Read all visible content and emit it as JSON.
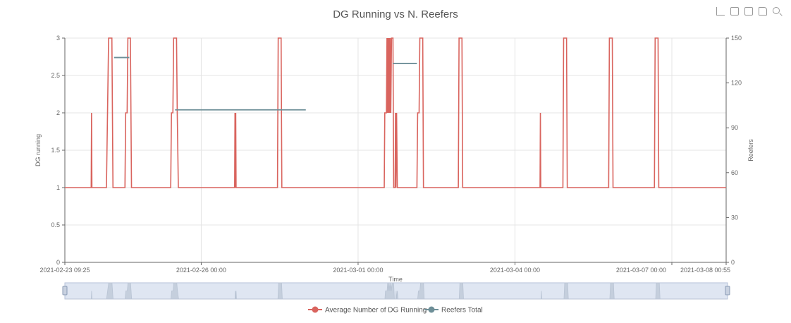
{
  "chart_data": {
    "type": "line",
    "title": "DG Running vs N. Reefers",
    "xlabel": "Time",
    "ylabel_left": "DG running",
    "ylabel_right": "Reefers",
    "x_range": [
      "2021-02-23 09:25",
      "2021-03-08 00:55"
    ],
    "x_tick_labels": [
      "2021-02-23 09:25",
      "2021-02-26 00:00",
      "2021-03-01 00:00",
      "2021-03-04 00:00",
      "2021-03-07 00:00",
      "2021-03-08 00:55"
    ],
    "y_left_ticks": [
      "0",
      "0.5",
      "1",
      "1.5",
      "2",
      "2.5",
      "3"
    ],
    "y_left_range": [
      0,
      3
    ],
    "y_right_ticks": [
      "0",
      "30",
      "60",
      "90",
      "120",
      "150"
    ],
    "y_right_range": [
      0,
      150
    ],
    "grid": true,
    "legend_position": "bottom-center",
    "series": [
      {
        "name": "Average Number of DG Running",
        "axis": "left",
        "color": "#d9645e",
        "points": [
          [
            "2021-02-23 09:25",
            1
          ],
          [
            "2021-02-23 21:30",
            1
          ],
          [
            "2021-02-23 21:40",
            2
          ],
          [
            "2021-02-23 21:50",
            1
          ],
          [
            "2021-02-24 04:30",
            1
          ],
          [
            "2021-02-24 05:00",
            2
          ],
          [
            "2021-02-24 05:30",
            3
          ],
          [
            "2021-02-24 07:00",
            3
          ],
          [
            "2021-02-24 07:30",
            1
          ],
          [
            "2021-02-24 13:00",
            1
          ],
          [
            "2021-02-24 13:20",
            2
          ],
          [
            "2021-02-24 14:00",
            2
          ],
          [
            "2021-02-24 14:20",
            3
          ],
          [
            "2021-02-24 15:30",
            3
          ],
          [
            "2021-02-24 16:00",
            1
          ],
          [
            "2021-02-25 10:00",
            1
          ],
          [
            "2021-02-25 10:20",
            2
          ],
          [
            "2021-02-25 11:00",
            2
          ],
          [
            "2021-02-25 11:20",
            3
          ],
          [
            "2021-02-25 12:40",
            3
          ],
          [
            "2021-02-25 13:00",
            2
          ],
          [
            "2021-02-25 13:30",
            1
          ],
          [
            "2021-02-26 15:20",
            1
          ],
          [
            "2021-02-26 15:30",
            2
          ],
          [
            "2021-02-26 15:40",
            1
          ],
          [
            "2021-02-26 15:50",
            2
          ],
          [
            "2021-02-26 16:00",
            1
          ],
          [
            "2021-02-27 11:00",
            1
          ],
          [
            "2021-02-27 11:20",
            3
          ],
          [
            "2021-02-27 12:40",
            3
          ],
          [
            "2021-02-27 13:00",
            1
          ],
          [
            "2021-03-01 12:00",
            1
          ],
          [
            "2021-03-01 12:15",
            2
          ],
          [
            "2021-03-01 13:00",
            2
          ],
          [
            "2021-03-01 13:15",
            3
          ],
          [
            "2021-03-01 13:30",
            2
          ],
          [
            "2021-03-01 13:45",
            3
          ],
          [
            "2021-03-01 14:00",
            2
          ],
          [
            "2021-03-01 14:15",
            3
          ],
          [
            "2021-03-01 14:30",
            2
          ],
          [
            "2021-03-01 14:45",
            3
          ],
          [
            "2021-03-01 15:00",
            2
          ],
          [
            "2021-03-01 15:20",
            3
          ],
          [
            "2021-03-01 16:00",
            3
          ],
          [
            "2021-03-01 16:20",
            1
          ],
          [
            "2021-03-01 17:00",
            1
          ],
          [
            "2021-03-01 17:10",
            2
          ],
          [
            "2021-03-01 17:20",
            1
          ],
          [
            "2021-03-01 17:40",
            2
          ],
          [
            "2021-03-01 18:00",
            1
          ],
          [
            "2021-03-02 03:00",
            1
          ],
          [
            "2021-03-02 03:20",
            2
          ],
          [
            "2021-03-02 04:00",
            2
          ],
          [
            "2021-03-02 04:20",
            3
          ],
          [
            "2021-03-02 05:40",
            3
          ],
          [
            "2021-03-02 06:00",
            1
          ],
          [
            "2021-03-02 22:00",
            1
          ],
          [
            "2021-03-02 22:20",
            3
          ],
          [
            "2021-03-02 23:40",
            3
          ],
          [
            "2021-03-03 00:00",
            1
          ],
          [
            "2021-03-04 11:30",
            1
          ],
          [
            "2021-03-04 11:40",
            2
          ],
          [
            "2021-03-04 11:50",
            1
          ],
          [
            "2021-03-04 22:00",
            1
          ],
          [
            "2021-03-04 22:20",
            3
          ],
          [
            "2021-03-04 23:40",
            3
          ],
          [
            "2021-03-05 00:00",
            1
          ],
          [
            "2021-03-05 19:00",
            1
          ],
          [
            "2021-03-05 19:20",
            3
          ],
          [
            "2021-03-05 20:40",
            3
          ],
          [
            "2021-03-05 21:00",
            1
          ],
          [
            "2021-03-06 16:00",
            1
          ],
          [
            "2021-03-06 16:20",
            3
          ],
          [
            "2021-03-06 17:40",
            3
          ],
          [
            "2021-03-06 18:00",
            1
          ],
          [
            "2021-03-08 00:55",
            1
          ]
        ]
      },
      {
        "name": "Reefers Total",
        "axis": "right",
        "color": "#6e8f98",
        "segments": [
          [
            [
              "2021-02-24 08:00",
              137
            ],
            [
              "2021-02-24 15:00",
              137
            ]
          ],
          [
            [
              "2021-02-25 12:00",
              102
            ],
            [
              "2021-02-28 00:00",
              102
            ]
          ],
          [
            [
              "2021-03-01 16:00",
              133
            ],
            [
              "2021-03-02 03:00",
              133
            ]
          ]
        ]
      }
    ]
  },
  "toolbox": {
    "icons": [
      "line-chart-icon",
      "restore-icon",
      "data-view-icon",
      "save-image-icon",
      "zoom-icon"
    ]
  }
}
